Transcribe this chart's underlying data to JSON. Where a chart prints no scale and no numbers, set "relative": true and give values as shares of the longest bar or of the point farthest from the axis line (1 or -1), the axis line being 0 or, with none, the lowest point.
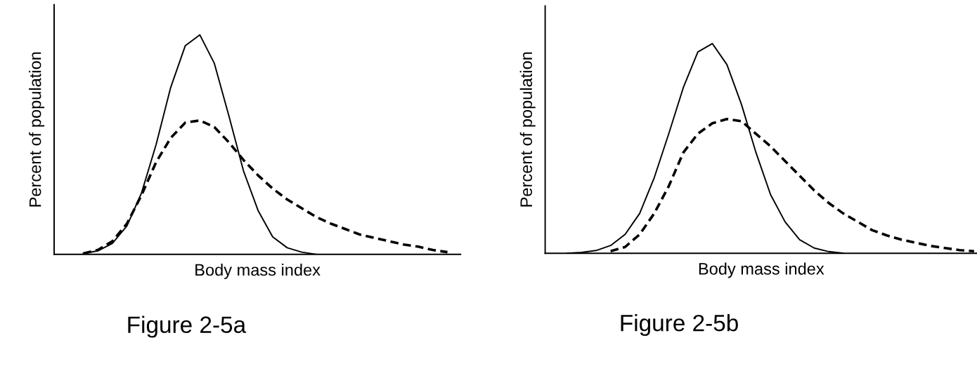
{
  "chart_data": [
    {
      "type": "line",
      "relative": true,
      "xlabel": "Body mass index",
      "ylabel": "Percent of population",
      "annotations": [
        "Figure 2-5a"
      ],
      "categories": [
        null,
        null,
        null,
        null,
        null,
        null,
        null,
        null,
        null,
        null,
        null,
        null,
        null,
        null,
        null,
        null,
        null,
        null,
        null,
        null,
        null,
        null,
        null,
        null,
        null,
        null
      ],
      "series": [
        {
          "color": "#000000",
          "line_style": "solid",
          "values": [
            0.004,
            0.016,
            0.05,
            0.13,
            0.28,
            0.5,
            0.76,
            0.95,
            1,
            0.87,
            0.63,
            0.38,
            0.2,
            0.08,
            0.03,
            0.01,
            0,
            null,
            null,
            null,
            null,
            null,
            null,
            null,
            null,
            null
          ]
        },
        {
          "color": "#000000",
          "line_style": "dashed",
          "values": [
            0.004,
            0.02,
            0.06,
            0.14,
            0.27,
            0.42,
            0.53,
            0.6,
            0.61,
            0.58,
            0.51,
            0.43,
            0.36,
            0.3,
            0.25,
            0.21,
            0.17,
            0.14,
            0.115,
            0.09,
            0.075,
            0.06,
            0.045,
            0.035,
            0.02,
            0.01
          ]
        }
      ]
    },
    {
      "type": "line",
      "relative": true,
      "xlabel": "Body mass index",
      "ylabel": "Percent of population",
      "annotations": [
        "Figure 2-5b"
      ],
      "categories": [
        null,
        null,
        null,
        null,
        null,
        null,
        null,
        null,
        null,
        null,
        null,
        null,
        null,
        null,
        null,
        null,
        null,
        null,
        null,
        null,
        null,
        null,
        null,
        null,
        null,
        null,
        null,
        null,
        null
      ],
      "series": [
        {
          "color": "#000000",
          "line_style": "solid",
          "values": [
            0,
            0.004,
            0.013,
            0.037,
            0.09,
            0.19,
            0.36,
            0.57,
            0.79,
            0.96,
            1,
            0.9,
            0.71,
            0.48,
            0.28,
            0.15,
            0.065,
            0.025,
            0.008,
            0,
            null,
            null,
            null,
            null,
            null,
            null,
            null,
            null,
            null
          ]
        },
        {
          "color": "#000000",
          "line_style": "dashed",
          "values": [
            null,
            null,
            null,
            0.01,
            0.03,
            0.09,
            0.19,
            0.32,
            0.48,
            0.57,
            0.62,
            0.64,
            0.63,
            0.57,
            0.51,
            0.44,
            0.37,
            0.3,
            0.24,
            0.19,
            0.15,
            0.11,
            0.085,
            0.065,
            0.05,
            0.035,
            0.025,
            0.015,
            0.01
          ]
        }
      ]
    }
  ]
}
